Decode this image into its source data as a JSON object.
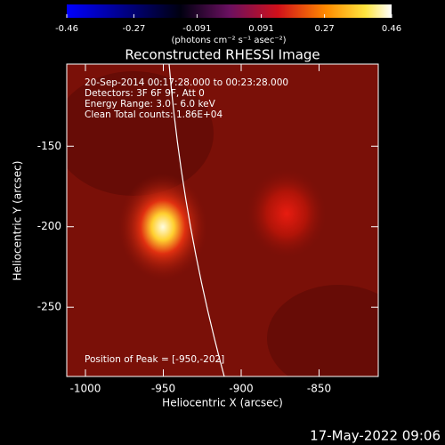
{
  "chart_data": {
    "type": "image",
    "title": "Reconstructed RHESSI Image",
    "colorbar": {
      "label": "(photons cm⁻² s⁻¹ asec⁻²)",
      "lim": [
        -0.46,
        0.46
      ],
      "ticks": [
        -0.46,
        -0.27,
        -0.091,
        0.091,
        0.27,
        0.46
      ]
    },
    "annotations": [
      "20-Sep-2014 00:17:28.000 to 00:23:28.000",
      "Detectors: 3F 6F 9F, Att 0",
      "Energy Range: 3.0 - 6.0 keV",
      "Clean     Total counts: 1.86E+04"
    ],
    "peak_label": "Position of Peak = [-950,-202]",
    "x_label": "Heliocentric X (arcsec)",
    "y_label": "Heliocentric Y (arcsec)",
    "xlim": [
      -1012,
      -812
    ],
    "xticks": [
      -1000,
      -950,
      -900,
      -850
    ],
    "ylim": [
      -293,
      -99
    ],
    "yticks": [
      -150,
      -200,
      -250
    ],
    "footer": "17-May-2022 09:06"
  }
}
